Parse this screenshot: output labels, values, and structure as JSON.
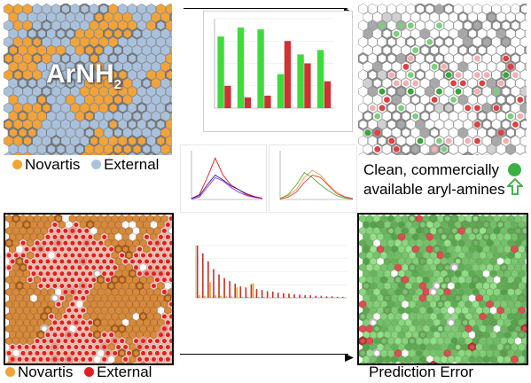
{
  "panels": {
    "top_left": {
      "overlay_text": "ArNH",
      "overlay_sub": "2",
      "legend": [
        {
          "label": "Novartis",
          "color": "#f2a33a"
        },
        {
          "label": "External",
          "color": "#a9c1dc"
        }
      ]
    },
    "top_right": {
      "caption_line1": "Clean, commercially",
      "caption_line2": "available aryl-amines"
    },
    "bottom_left": {
      "legend": [
        {
          "label": "Novartis",
          "color": "#f2a33a"
        },
        {
          "label": "External",
          "color": "#e02020"
        }
      ]
    },
    "bottom_right": {
      "caption": "Prediction Error"
    }
  },
  "colors": {
    "orange": "#f2a33a",
    "blue": "#a9c1dc",
    "red": "#e02020",
    "green": "#3cb043",
    "boundary": "#000000"
  },
  "chart_data": [
    {
      "type": "bar",
      "series": [
        {
          "color": "#3ddc3d",
          "values": [
            0.8,
            0.9,
            0.88,
            0.38,
            0.6,
            0.65
          ]
        },
        {
          "color": "#cc3333",
          "values": [
            0.25,
            0.12,
            0.14,
            0.75,
            0.5,
            0.3
          ]
        }
      ],
      "ylim": [
        0,
        1
      ]
    },
    {
      "type": "line",
      "series": [
        {
          "color": "#cc2222",
          "values": [
            0.02,
            0.1,
            0.45,
            0.85,
            0.5,
            0.3,
            0.2,
            0.12,
            0.06,
            0.03
          ]
        },
        {
          "color": "#2222aa",
          "values": [
            0.02,
            0.08,
            0.3,
            0.5,
            0.4,
            0.28,
            0.2,
            0.1,
            0.05,
            0.02
          ]
        },
        {
          "color": "#aa33cc",
          "values": [
            0.01,
            0.05,
            0.25,
            0.45,
            0.38,
            0.25,
            0.15,
            0.08,
            0.04,
            0.02
          ]
        }
      ],
      "ylim": [
        0,
        1
      ]
    },
    {
      "type": "line",
      "series": [
        {
          "color": "#e8a050",
          "values": [
            0.02,
            0.08,
            0.2,
            0.45,
            0.6,
            0.5,
            0.3,
            0.15,
            0.06,
            0.02
          ]
        },
        {
          "color": "#55aa33",
          "values": [
            0.02,
            0.1,
            0.3,
            0.55,
            0.45,
            0.3,
            0.18,
            0.08,
            0.03,
            0.01
          ]
        },
        {
          "color": "#dd4444",
          "values": [
            0.01,
            0.05,
            0.15,
            0.35,
            0.5,
            0.45,
            0.28,
            0.12,
            0.05,
            0.02
          ]
        }
      ],
      "ylim": [
        0,
        1
      ]
    },
    {
      "type": "bar",
      "series": [
        {
          "color": "#c0392b",
          "values": [
            1,
            0.85,
            0.7,
            0.55,
            0.45,
            0.38,
            0.32,
            0.27,
            0.22,
            0.2,
            0.26,
            0.17,
            0.15,
            0.13,
            0.12,
            0.1,
            0.09,
            0.08,
            0.07,
            0.06,
            0.05,
            0.05,
            0.04,
            0.04,
            0.03,
            0.03,
            0.02,
            0.02
          ]
        },
        {
          "color": "#e8a020",
          "values": [
            0.05,
            0.04,
            0.3,
            0.05,
            0.04,
            0.03,
            0.03,
            0.2,
            0.02,
            0.02,
            0.28,
            0.02,
            0.02,
            0.01,
            0.01,
            0.01,
            0.01,
            0.01,
            0.01,
            0.01,
            0.01,
            0.01,
            0.01,
            0.01,
            0.01,
            0.01,
            0.01,
            0.01
          ]
        }
      ],
      "ylim": [
        0,
        1
      ]
    }
  ]
}
